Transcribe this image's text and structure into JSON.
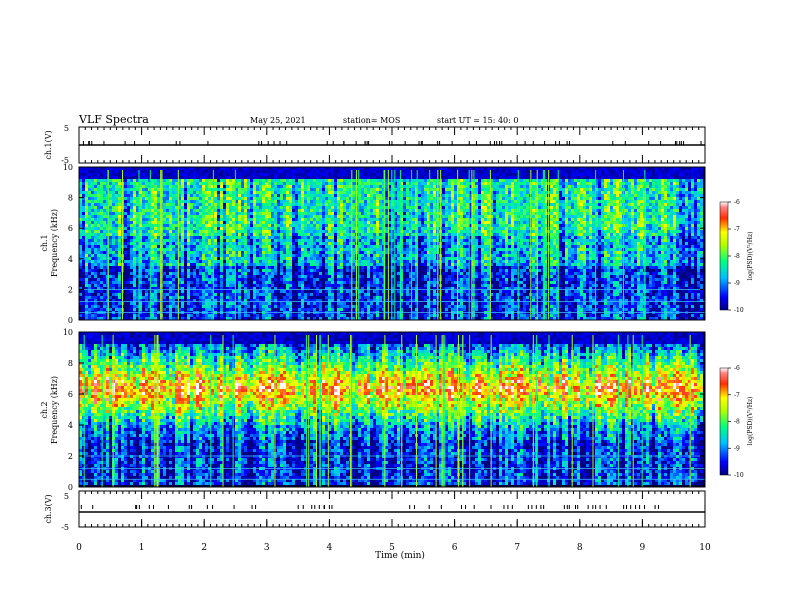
{
  "header": {
    "title": "VLF Spectra",
    "date": "May 25, 2021",
    "station": "station= MOS",
    "start_time": "start  UT =   15: 40: 0"
  },
  "chart_data": [
    {
      "type": "line",
      "panel": "waveform-ch1",
      "ylabel": "ch.1(V)",
      "ylim": [
        -5,
        5
      ],
      "y_ticks": [
        "5",
        "-5"
      ],
      "series": [
        {
          "values_constant": 0
        }
      ]
    },
    {
      "type": "heatmap",
      "panel": "spectrogram-ch1",
      "ylabel": "ch.1\nFrequency (kHz)",
      "ylim": [
        0,
        10
      ],
      "y_ticks": [
        "0",
        "2",
        "4",
        "6",
        "8",
        "10"
      ],
      "colorbar": {
        "label": "log(PSD)(V²/Hz)",
        "range": [
          -10,
          -6
        ],
        "ticks": [
          "-6",
          "-7",
          "-8",
          "-9",
          "-10"
        ]
      }
    },
    {
      "type": "heatmap",
      "panel": "spectrogram-ch2",
      "ylabel": "ch.2\nFrequency (kHz)",
      "ylim": [
        0,
        10
      ],
      "y_ticks": [
        "0",
        "2",
        "4",
        "6",
        "8",
        "10"
      ],
      "colorbar": {
        "label": "log(PSD)(V²/Hz)",
        "range": [
          -10,
          -6
        ],
        "ticks": [
          "-6",
          "-7",
          "-8",
          "-9",
          "-10"
        ]
      }
    },
    {
      "type": "line",
      "panel": "waveform-ch3",
      "ylabel": "ch.3(V)",
      "ylim": [
        -5,
        5
      ],
      "y_ticks": [
        "5",
        "-5"
      ],
      "series": [
        {
          "values_constant": 0
        }
      ]
    }
  ],
  "x_axis": {
    "label": "Time  (min)",
    "range": [
      0,
      10
    ],
    "ticks": [
      "0",
      "1",
      "2",
      "3",
      "4",
      "5",
      "6",
      "7",
      "8",
      "9",
      "10"
    ]
  }
}
